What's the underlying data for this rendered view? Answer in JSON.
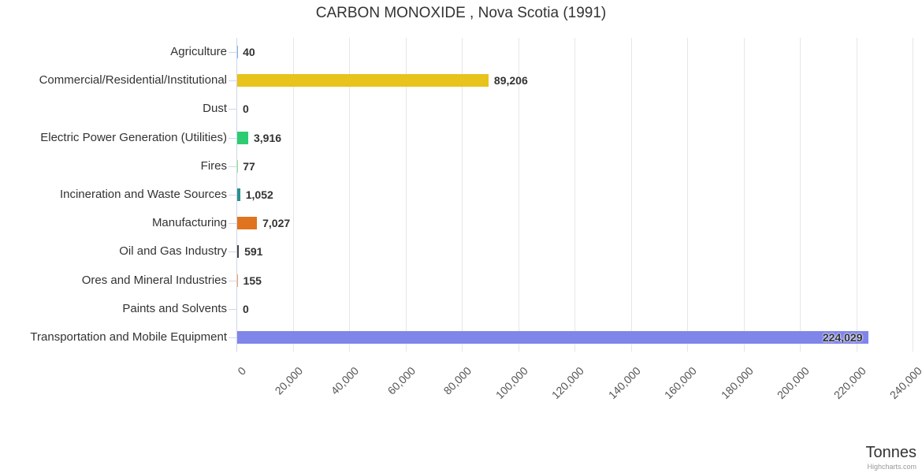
{
  "title": "CARBON MONOXIDE , Nova Scotia (1991)",
  "x_axis_title": "Tonnes",
  "credit": "Highcharts.com",
  "colors": {
    "grid": "#e6e6e6",
    "axis": "#ccd6eb",
    "title_text": "#333333",
    "category_text": "#333333",
    "tick_text": "#555555",
    "value_text": "#333333",
    "credit_text": "#999999",
    "background": "#ffffff"
  },
  "chart_data": {
    "type": "bar",
    "orientation": "horizontal",
    "title": "CARBON MONOXIDE , Nova Scotia (1991)",
    "xlabel": "Tonnes",
    "ylabel": "",
    "xlim": [
      0,
      240000
    ],
    "grid": true,
    "legend": false,
    "x_ticks": [
      0,
      20000,
      40000,
      60000,
      80000,
      100000,
      120000,
      140000,
      160000,
      180000,
      200000,
      220000,
      240000
    ],
    "x_tick_labels": [
      "0",
      "20,000",
      "40,000",
      "60,000",
      "80,000",
      "100,000",
      "120,000",
      "140,000",
      "160,000",
      "180,000",
      "200,000",
      "220,000",
      "240,000"
    ],
    "categories": [
      "Agriculture",
      "Commercial/Residential/Institutional",
      "Dust",
      "Electric Power Generation (Utilities)",
      "Fires",
      "Incineration and Waste Sources",
      "Manufacturing",
      "Oil and Gas Industry",
      "Ores and Mineral Industries",
      "Paints and Solvents",
      "Transportation and Mobile Equipment"
    ],
    "values": [
      40,
      89206,
      0,
      3916,
      77,
      1052,
      7027,
      591,
      155,
      0,
      224029
    ],
    "value_labels": [
      "40",
      "89,206",
      "0",
      "3,916",
      "77",
      "1,052",
      "7,027",
      "591",
      "155",
      "0",
      "224,029"
    ],
    "bar_colors": [
      "#7cb5ec",
      "#e7c31b",
      "#f15c80",
      "#2ecc71",
      "#90ed7d",
      "#2b908f",
      "#e0731d",
      "#434348",
      "#f7a35c",
      "#91e8e1",
      "#8085e9"
    ]
  }
}
